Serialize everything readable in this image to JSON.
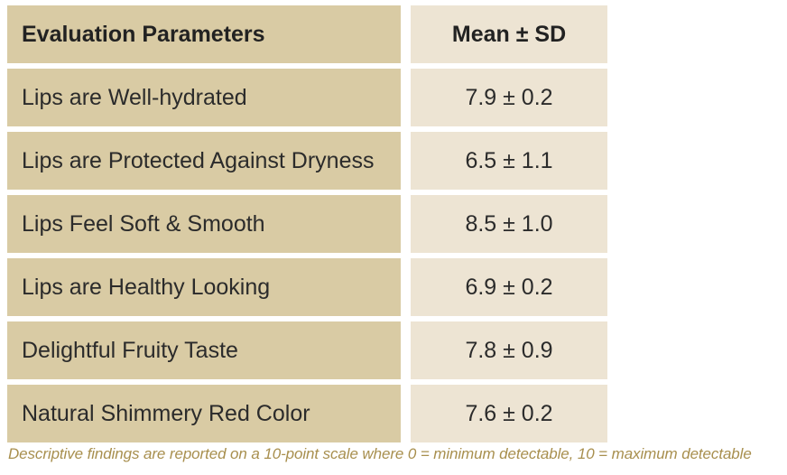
{
  "table": {
    "header": {
      "parameter": "Evaluation Parameters",
      "mean": "Mean ± SD"
    },
    "rows": [
      {
        "parameter": "Lips are Well-hydrated",
        "mean": "7.9 ± 0.2"
      },
      {
        "parameter": "Lips are Protected Against Dryness",
        "mean": "6.5 ± 1.1"
      },
      {
        "parameter": "Lips Feel Soft & Smooth",
        "mean": "8.5 ± 1.0"
      },
      {
        "parameter": "Lips are Healthy Looking",
        "mean": "6.9 ± 0.2"
      },
      {
        "parameter": "Delightful Fruity Taste",
        "mean": "7.8 ± 0.9"
      },
      {
        "parameter": "Natural Shimmery Red Color",
        "mean": "7.6 ± 0.2"
      }
    ]
  },
  "footnote": "Descriptive findings are reported on a 10-point scale where 0 = minimum detectable, 10 = maximum detectable",
  "colors": {
    "parameter_cell": "#d9cba4",
    "mean_cell": "#ede4d3",
    "footnote_text": "#a88f4e"
  }
}
